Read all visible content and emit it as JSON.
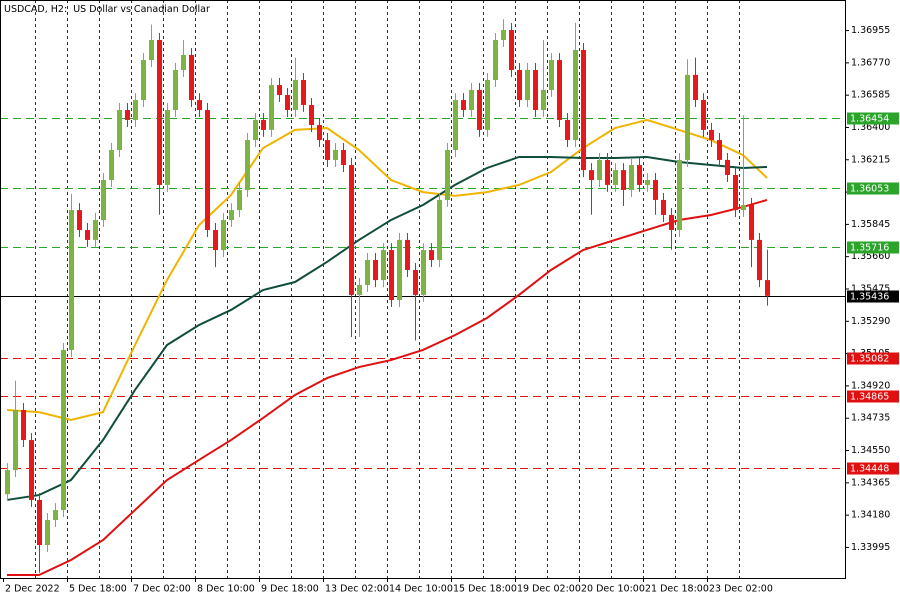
{
  "chart_data": {
    "type": "candlestick",
    "symbol": "USDCAD, H2:",
    "description": "US Dollar vs Canadian Dollar",
    "categories": [
      "2 Dec 2022",
      null,
      null,
      null,
      null,
      null,
      null,
      null,
      "5 Dec 18:00",
      null,
      null,
      null,
      null,
      null,
      null,
      null,
      "7 Dec 02:00",
      null,
      null,
      null,
      null,
      null,
      null,
      null,
      "8 Dec 10:00",
      null,
      null,
      null,
      null,
      null,
      null,
      null,
      "9 Dec 18:00",
      null,
      null,
      null,
      null,
      null,
      null,
      null,
      "13 Dec 02:00",
      null,
      null,
      null,
      null,
      null,
      null,
      null,
      "14 Dec 10:00",
      null,
      null,
      null,
      null,
      null,
      null,
      null,
      "15 Dec 18:00",
      null,
      null,
      null,
      null,
      null,
      null,
      null,
      "19 Dec 02:00",
      null,
      null,
      null,
      null,
      null,
      null,
      null,
      "20 Dec 10:00",
      null,
      null,
      null,
      null,
      null,
      null,
      null,
      "21 Dec 18:00",
      null,
      null,
      null,
      null,
      null,
      null,
      null,
      "23 Dec 02:00",
      null,
      null,
      null,
      null,
      null,
      null,
      null
    ],
    "open": [
      1.343,
      1.34438,
      1.34782,
      1.3461,
      1.34267,
      1.34009,
      1.34152,
      1.34209,
      1.35126,
      1.35927,
      1.35813,
      1.35756,
      1.3587,
      1.36099,
      1.36271,
      1.365,
      1.36443,
      1.36557,
      1.36786,
      1.36901,
      1.36071,
      1.365,
      1.36729,
      1.36815,
      1.36557,
      1.365,
      1.35813,
      1.35698,
      1.3587,
      1.35927,
      1.36042,
      1.36328,
      1.36443,
      1.36386,
      1.36643,
      1.36586,
      1.365,
      1.36672,
      1.36529,
      1.36414,
      1.36328,
      1.36214,
      1.36271,
      1.36185,
      1.35441,
      1.35498,
      1.35641,
      1.35526,
      1.35698,
      1.35412,
      1.35756,
      1.35584,
      1.35441,
      1.35698,
      1.35641,
      1.35985,
      1.36271,
      1.36557,
      1.365,
      1.36615,
      1.36386,
      1.36672,
      1.36901,
      1.36958,
      1.36729,
      1.36557,
      1.36729,
      1.365,
      1.36615,
      1.36786,
      1.36443,
      1.36328,
      1.36844,
      1.36156,
      1.36099,
      1.36214,
      1.36071,
      1.36156,
      1.36042,
      1.36185,
      1.36071,
      1.36099,
      1.35985,
      1.35899,
      1.35813,
      1.36214,
      1.36701,
      1.36557,
      1.36386,
      1.36328,
      1.36214,
      1.36128,
      1.35927,
      1.35956,
      1.35756,
      1.35526
    ],
    "high": [
      1.34478,
      1.3495,
      1.34822,
      1.3465,
      1.34307,
      1.34192,
      1.34249,
      1.35166,
      1.3602,
      1.35967,
      1.35853,
      1.3591,
      1.36139,
      1.36311,
      1.3654,
      1.3654,
      1.36597,
      1.36826,
      1.3699,
      1.36941,
      1.3654,
      1.36769,
      1.369,
      1.36855,
      1.36597,
      1.3654,
      1.35853,
      1.3591,
      1.35967,
      1.36082,
      1.36368,
      1.36483,
      1.36483,
      1.36683,
      1.36683,
      1.36626,
      1.368,
      1.36712,
      1.36569,
      1.36454,
      1.36368,
      1.36311,
      1.36311,
      1.36225,
      1.35538,
      1.35681,
      1.35681,
      1.35738,
      1.35738,
      1.35796,
      1.35796,
      1.35624,
      1.35738,
      1.35738,
      1.36025,
      1.36311,
      1.36597,
      1.36597,
      1.36655,
      1.36655,
      1.36712,
      1.36941,
      1.3702,
      1.36998,
      1.36769,
      1.36769,
      1.36769,
      1.369,
      1.36826,
      1.36826,
      1.36483,
      1.37,
      1.36884,
      1.36196,
      1.36254,
      1.36254,
      1.36196,
      1.36196,
      1.36225,
      1.36225,
      1.36139,
      1.36139,
      1.36025,
      1.35939,
      1.36254,
      1.3679,
      1.368,
      1.36597,
      1.36426,
      1.36368,
      1.36254,
      1.36168,
      1.3647,
      1.35996,
      1.35796,
      1.357
    ],
    "low": [
      1.3426,
      1.34398,
      1.3457,
      1.34227,
      1.3385,
      1.33969,
      1.34112,
      1.34169,
      1.35086,
      1.35773,
      1.35716,
      1.35716,
      1.3583,
      1.36059,
      1.36231,
      1.36403,
      1.36403,
      1.36517,
      1.36746,
      1.359,
      1.36031,
      1.3646,
      1.36689,
      1.36517,
      1.3646,
      1.35773,
      1.356,
      1.35658,
      1.3583,
      1.35887,
      1.36002,
      1.36288,
      1.36346,
      1.36346,
      1.36546,
      1.3646,
      1.3646,
      1.36489,
      1.36374,
      1.36288,
      1.36174,
      1.36174,
      1.36145,
      1.352,
      1.352,
      1.35458,
      1.35486,
      1.35486,
      1.35372,
      1.35372,
      1.35544,
      1.3518,
      1.35401,
      1.35601,
      1.35601,
      1.35945,
      1.36231,
      1.3646,
      1.3646,
      1.36346,
      1.36346,
      1.36632,
      1.36861,
      1.36689,
      1.36517,
      1.36517,
      1.3646,
      1.3646,
      1.36575,
      1.36403,
      1.36288,
      1.36288,
      1.36116,
      1.359,
      1.36059,
      1.36031,
      1.36031,
      1.3595,
      1.36002,
      1.36031,
      1.36031,
      1.359,
      1.35859,
      1.357,
      1.35773,
      1.36174,
      1.36517,
      1.36346,
      1.36288,
      1.36174,
      1.36088,
      1.35887,
      1.35887,
      1.356,
      1.35486,
      1.3538
    ],
    "close": [
      1.34438,
      1.34782,
      1.3461,
      1.34267,
      1.34009,
      1.34152,
      1.34209,
      1.35126,
      1.35927,
      1.35813,
      1.35756,
      1.3587,
      1.36099,
      1.36271,
      1.365,
      1.36443,
      1.36557,
      1.36786,
      1.36901,
      1.36071,
      1.365,
      1.36729,
      1.36815,
      1.36557,
      1.365,
      1.35813,
      1.35698,
      1.3587,
      1.35927,
      1.36042,
      1.36328,
      1.36443,
      1.36386,
      1.36643,
      1.36586,
      1.365,
      1.36672,
      1.36529,
      1.36414,
      1.36328,
      1.36214,
      1.36271,
      1.36185,
      1.35441,
      1.35498,
      1.35641,
      1.35526,
      1.35698,
      1.35412,
      1.35756,
      1.35584,
      1.35441,
      1.35698,
      1.35641,
      1.35985,
      1.36271,
      1.36557,
      1.365,
      1.36615,
      1.36386,
      1.36672,
      1.36901,
      1.36958,
      1.36729,
      1.36557,
      1.36729,
      1.365,
      1.36615,
      1.36786,
      1.36443,
      1.36328,
      1.36844,
      1.36156,
      1.36099,
      1.36214,
      1.36071,
      1.36156,
      1.36042,
      1.36185,
      1.36071,
      1.36099,
      1.35985,
      1.35899,
      1.35813,
      1.36214,
      1.36701,
      1.36557,
      1.36386,
      1.36328,
      1.36214,
      1.36128,
      1.35927,
      1.35956,
      1.35756,
      1.35526,
      1.35436
    ],
    "up_color": "#7cb342",
    "down_color": "#e3191c",
    "moving_averages": [
      {
        "color": "#f0b400",
        "x": [
          0,
          4,
          8,
          12,
          16,
          20,
          24,
          28,
          32,
          36,
          40,
          44,
          48,
          52,
          56,
          60,
          64,
          68,
          72,
          76,
          80,
          84,
          88,
          92,
          95
        ],
        "values": [
          1.34782,
          1.3477,
          1.34725,
          1.3477,
          1.35154,
          1.35526,
          1.35841,
          1.36013,
          1.36282,
          1.36386,
          1.36397,
          1.36271,
          1.36099,
          1.3603,
          1.36008,
          1.3603,
          1.36071,
          1.36145,
          1.36282,
          1.36397,
          1.36443,
          1.36386,
          1.36328,
          1.36242,
          1.36111
        ]
      },
      {
        "color": "#0f4d3c",
        "x": [
          0,
          4,
          8,
          12,
          16,
          20,
          24,
          28,
          32,
          36,
          40,
          44,
          48,
          52,
          56,
          60,
          64,
          68,
          72,
          76,
          80,
          84,
          88,
          92,
          95
        ],
        "values": [
          1.34267,
          1.34295,
          1.34381,
          1.3461,
          1.34897,
          1.35154,
          1.35269,
          1.35355,
          1.35469,
          1.35515,
          1.3563,
          1.35756,
          1.3587,
          1.35956,
          1.36071,
          1.36168,
          1.36231,
          1.36231,
          1.36225,
          1.36225,
          1.36231,
          1.36202,
          1.36185,
          1.36168,
          1.36174
        ]
      },
      {
        "color": "#e01010",
        "x": [
          0,
          4,
          8,
          12,
          16,
          20,
          24,
          28,
          32,
          36,
          40,
          44,
          48,
          52,
          56,
          60,
          64,
          68,
          72,
          76,
          80,
          84,
          88,
          92,
          95
        ],
        "values": [
          1.33837,
          1.33837,
          1.33923,
          1.34037,
          1.34209,
          1.34381,
          1.34496,
          1.3461,
          1.34736,
          1.34868,
          1.34965,
          1.35028,
          1.35068,
          1.35126,
          1.35211,
          1.35309,
          1.35441,
          1.35584,
          1.35698,
          1.35756,
          1.35813,
          1.3587,
          1.35899,
          1.35945,
          1.35985
        ]
      }
    ],
    "levels": [
      {
        "value": 1.36454,
        "color": "#2aa52a",
        "style": "dashed"
      },
      {
        "value": 1.36053,
        "color": "#2aa52a",
        "style": "dashed"
      },
      {
        "value": 1.35716,
        "color": "#2aa52a",
        "style": "dashed"
      },
      {
        "value": 1.35436,
        "color": "#000000",
        "style": "solid"
      },
      {
        "value": 1.35082,
        "color": "#e01010",
        "style": "dashed"
      },
      {
        "value": 1.34865,
        "color": "#e01010",
        "style": "dashed"
      },
      {
        "value": 1.34448,
        "color": "#e01010",
        "style": "dashed"
      }
    ],
    "ylim": [
      1.3382,
      1.3713
    ],
    "yticks": [
      1.36955,
      {
        "value": 1.3677,
        "label": "1.36770"
      },
      1.36585,
      {
        "value": 1.364,
        "label": "1.36400"
      },
      1.36215,
      {
        "value": 1.3603,
        "label": "1.36030"
      },
      1.35845,
      {
        "value": 1.3566,
        "label": "1.35660"
      },
      1.35475,
      {
        "value": 1.3529,
        "label": "1.35290"
      },
      1.35105,
      {
        "value": 1.3492,
        "label": "1.34920"
      },
      1.34735,
      {
        "value": 1.3455,
        "label": "1.34550"
      },
      1.34365,
      {
        "value": 1.3418,
        "label": "1.34180"
      },
      1.33995
    ],
    "grid": true
  }
}
